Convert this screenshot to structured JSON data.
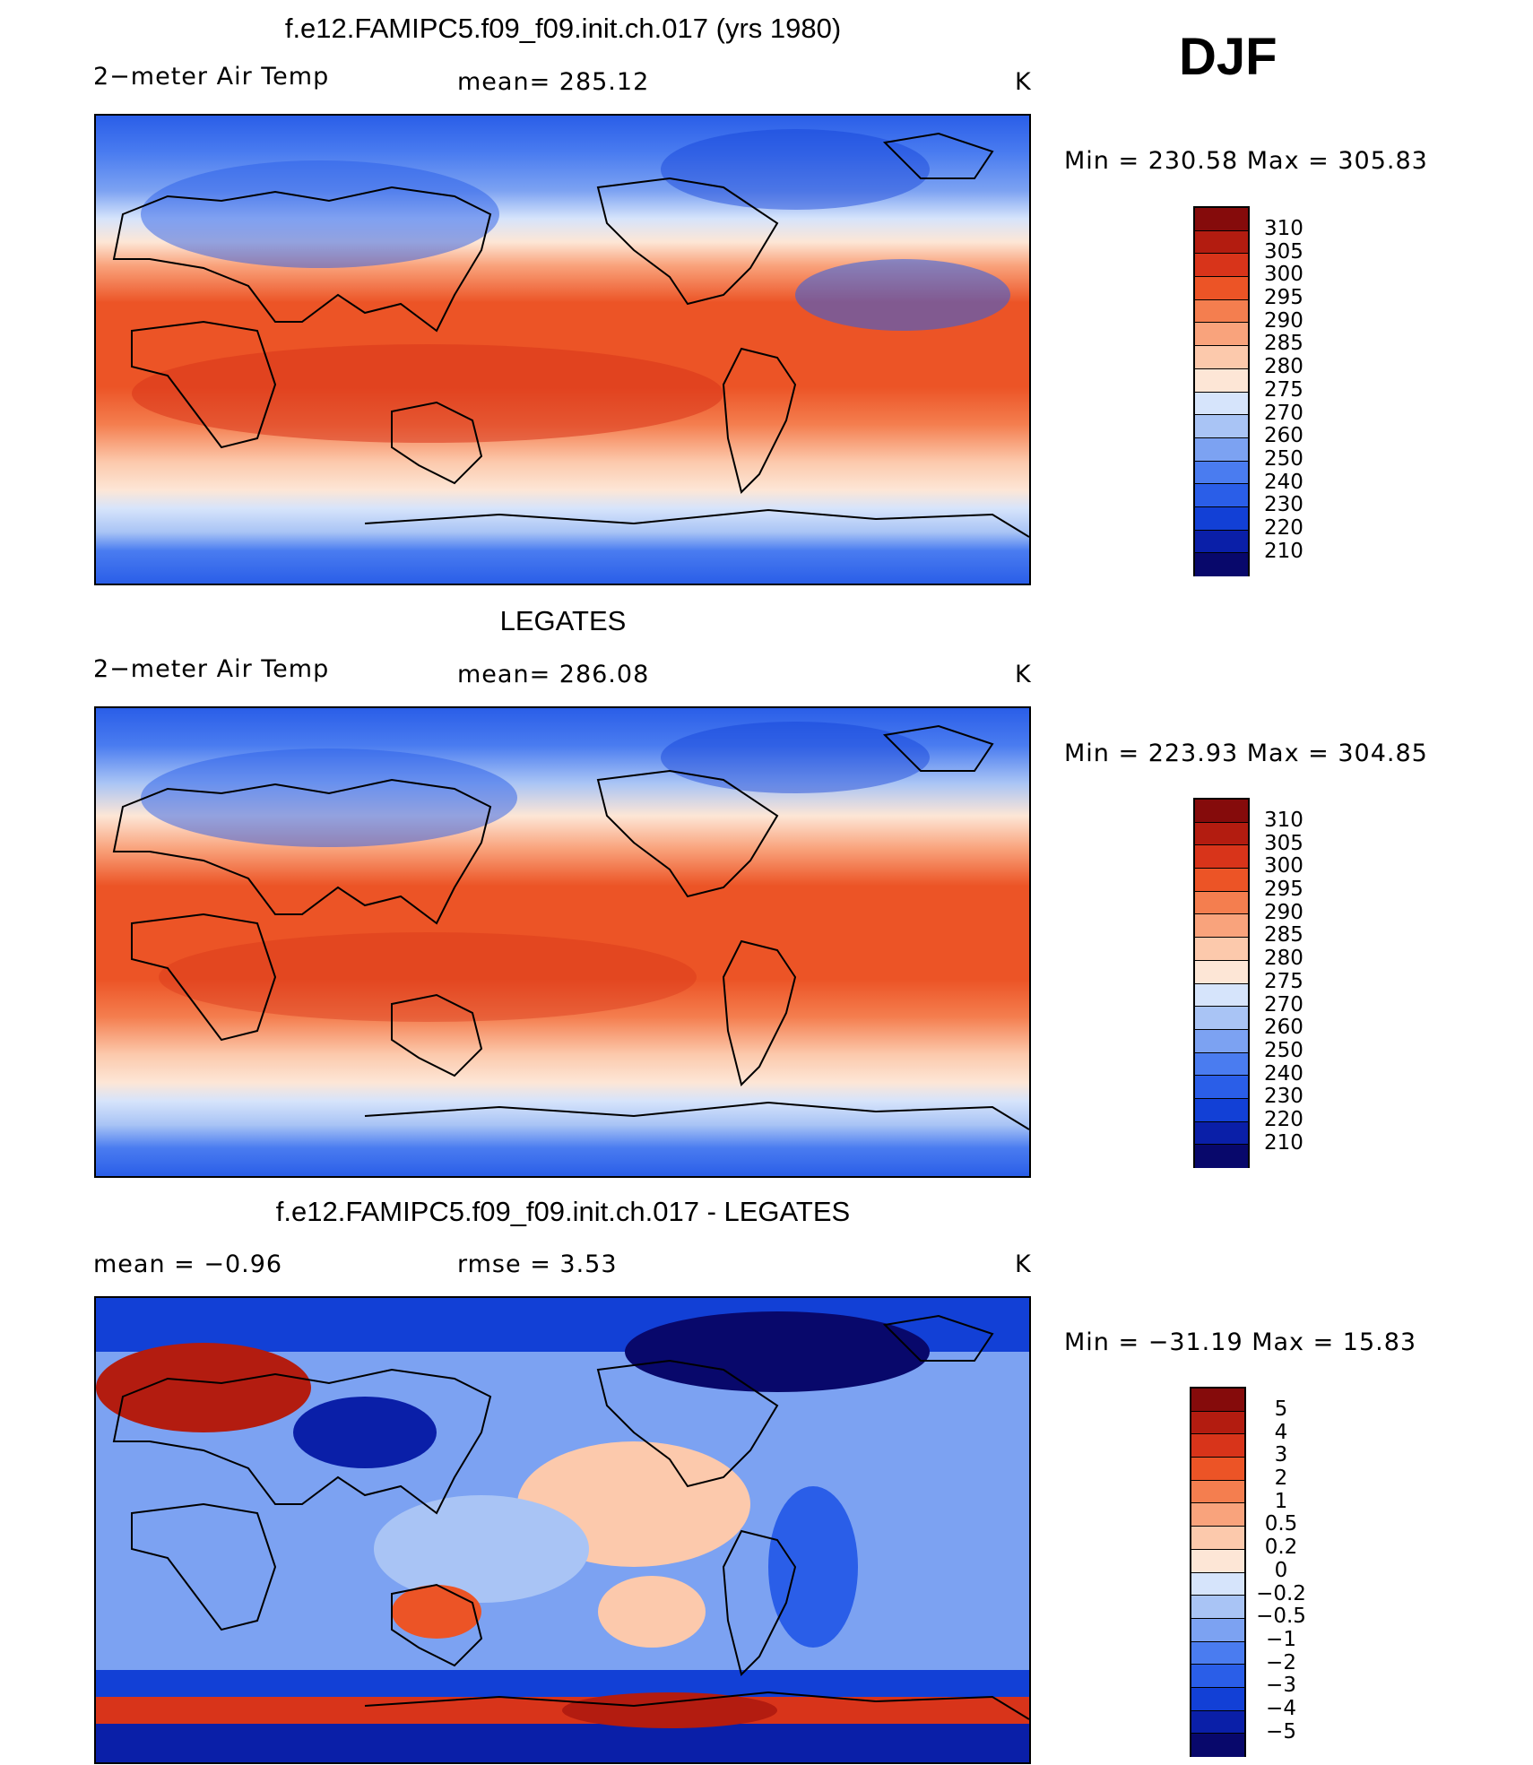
{
  "season": "DJF",
  "units": "K",
  "palette_abs": [
    "#08086b",
    "#0a1fa8",
    "#1240d6",
    "#2a5ee8",
    "#4a7cf0",
    "#7ca2f2",
    "#a9c4f5",
    "#d6e4fb",
    "#fde6d6",
    "#fcc9ac",
    "#f9a37c",
    "#f47e4f",
    "#ec5426",
    "#d8341a",
    "#b31c10",
    "#850b0b"
  ],
  "palette_diff": [
    "#08086b",
    "#0a1fa8",
    "#1240d6",
    "#2a5ee8",
    "#4a7cf0",
    "#7ca2f2",
    "#a9c4f5",
    "#d6e4fb",
    "#fde6d6",
    "#fcc9ac",
    "#f9a37c",
    "#f47e4f",
    "#ec5426",
    "#d8341a",
    "#b31c10",
    "#850b0b"
  ],
  "panels": [
    {
      "title": "f.e12.FAMIPC5.f09_f09.init.ch.017 (yrs 1980)",
      "left_label": "2−meter Air Temp",
      "center_label": "mean=  285.12",
      "units": "K",
      "minmax": "Min  =  230.58  Max  =  305.83",
      "ticks": [
        "310",
        "305",
        "300",
        "295",
        "290",
        "285",
        "280",
        "275",
        "270",
        "260",
        "250",
        "240",
        "230",
        "220",
        "210"
      ]
    },
    {
      "title": "LEGATES",
      "left_label": "2−meter Air Temp",
      "center_label": "mean=  286.08",
      "units": "K",
      "minmax": "Min  =  223.93  Max  =  304.85",
      "ticks": [
        "310",
        "305",
        "300",
        "295",
        "290",
        "285",
        "280",
        "275",
        "270",
        "260",
        "250",
        "240",
        "230",
        "220",
        "210"
      ]
    },
    {
      "title": "f.e12.FAMIPC5.f09_f09.init.ch.017 - LEGATES",
      "left_label": "mean  =     −0.96",
      "center_label": "rmse  =     3.53",
      "units": "K",
      "minmax": "Min  =  −31.19  Max  =    15.83",
      "ticks": [
        "5",
        "4",
        "3",
        "2",
        "1",
        "0.5",
        "0.2",
        "0",
        "−0.2",
        "−0.5",
        "−1",
        "−2",
        "−3",
        "−4",
        "−5"
      ]
    }
  ]
}
